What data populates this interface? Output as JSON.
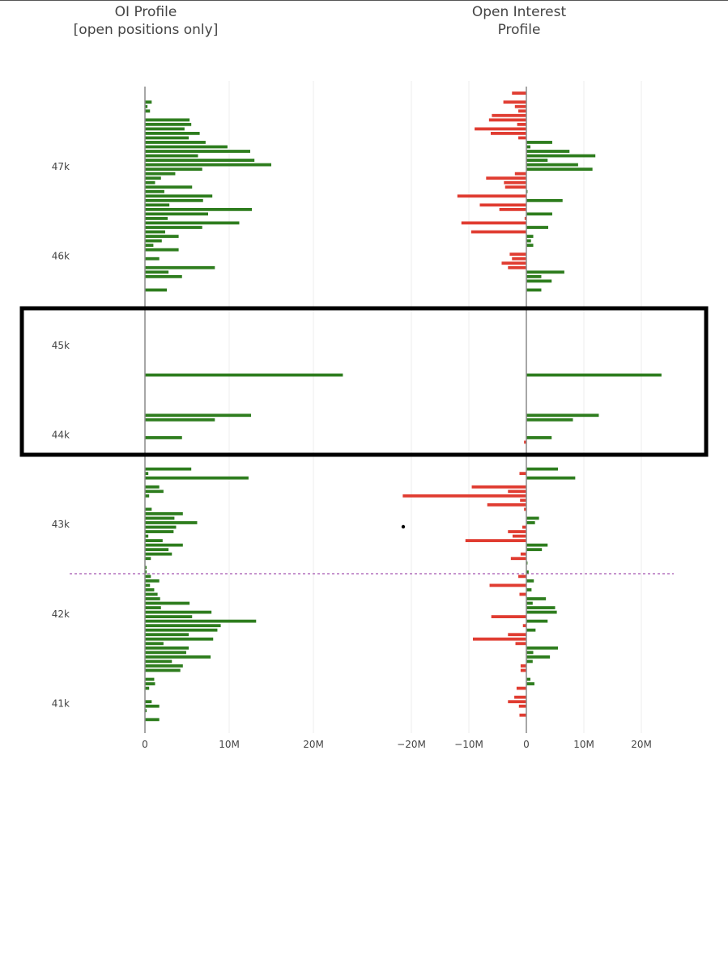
{
  "titles": {
    "left_line1": "OI Profile",
    "left_line2": "[open positions only]",
    "right_line1": "Open Interest",
    "right_line2": "Profile"
  },
  "colors": {
    "positive": "#2e7d1e",
    "negative": "#e03c31",
    "grid": "#ececec",
    "zero_axis": "#8a8a8a",
    "reference_line": "#a355b0",
    "highlight_box": "#000000",
    "tick_text": "#444444"
  },
  "chart_data": [
    {
      "type": "bar",
      "orientation": "horizontal",
      "title": "OI Profile [open positions only]",
      "ylim": [
        40700,
        47950
      ],
      "xlim": [
        0,
        26000000
      ],
      "y_ticks": [
        41000,
        42000,
        43000,
        44000,
        45000,
        46000,
        47000
      ],
      "y_tick_labels": [
        "41k",
        "42k",
        "43k",
        "44k",
        "45k",
        "46k",
        "47k"
      ],
      "x_ticks": [
        0,
        10000000,
        20000000
      ],
      "x_tick_labels": [
        "0",
        "10M",
        "20M"
      ],
      "grid": true,
      "series": [
        {
          "values": [
            [
              47720,
              800000
            ],
            [
              47670,
              300000
            ],
            [
              47620,
              600000
            ],
            [
              47520,
              5300000
            ],
            [
              47470,
              5500000
            ],
            [
              47420,
              4700000
            ],
            [
              47370,
              6500000
            ],
            [
              47320,
              5200000
            ],
            [
              47270,
              7200000
            ],
            [
              47220,
              9800000
            ],
            [
              47170,
              12500000
            ],
            [
              47120,
              6300000
            ],
            [
              47070,
              13000000
            ],
            [
              47020,
              15000000
            ],
            [
              46970,
              6800000
            ],
            [
              46920,
              3600000
            ],
            [
              46870,
              1900000
            ],
            [
              46820,
              1200000
            ],
            [
              46770,
              5600000
            ],
            [
              46720,
              2300000
            ],
            [
              46670,
              8000000
            ],
            [
              46620,
              6900000
            ],
            [
              46570,
              2900000
            ],
            [
              46520,
              12700000
            ],
            [
              46470,
              7500000
            ],
            [
              46420,
              2700000
            ],
            [
              46370,
              11200000
            ],
            [
              46320,
              6800000
            ],
            [
              46270,
              2400000
            ],
            [
              46220,
              4000000
            ],
            [
              46170,
              2000000
            ],
            [
              46120,
              1000000
            ],
            [
              46070,
              4000000
            ],
            [
              45970,
              1700000
            ],
            [
              45870,
              8300000
            ],
            [
              45820,
              2800000
            ],
            [
              45770,
              4400000
            ],
            [
              45620,
              2600000
            ],
            [
              44670,
              23500000
            ],
            [
              44220,
              12600000
            ],
            [
              44170,
              8300000
            ],
            [
              43970,
              4400000
            ],
            [
              43620,
              5500000
            ],
            [
              43570,
              400000
            ],
            [
              43520,
              12300000
            ],
            [
              43420,
              1700000
            ],
            [
              43370,
              2200000
            ],
            [
              43320,
              500000
            ],
            [
              43170,
              800000
            ],
            [
              43120,
              4500000
            ],
            [
              43070,
              3500000
            ],
            [
              43020,
              6200000
            ],
            [
              42970,
              3700000
            ],
            [
              42920,
              3400000
            ],
            [
              42870,
              400000
            ],
            [
              42820,
              2100000
            ],
            [
              42770,
              4500000
            ],
            [
              42720,
              2800000
            ],
            [
              42670,
              3200000
            ],
            [
              42620,
              700000
            ],
            [
              42520,
              200000
            ],
            [
              42470,
              200000
            ],
            [
              42420,
              700000
            ],
            [
              42370,
              1700000
            ],
            [
              42320,
              600000
            ],
            [
              42270,
              1100000
            ],
            [
              42220,
              1500000
            ],
            [
              42170,
              1800000
            ],
            [
              42120,
              5300000
            ],
            [
              42070,
              1900000
            ],
            [
              42020,
              7900000
            ],
            [
              41970,
              5600000
            ],
            [
              41920,
              13200000
            ],
            [
              41870,
              9000000
            ],
            [
              41820,
              8600000
            ],
            [
              41770,
              5200000
            ],
            [
              41720,
              8100000
            ],
            [
              41670,
              2200000
            ],
            [
              41620,
              5200000
            ],
            [
              41570,
              4900000
            ],
            [
              41520,
              7800000
            ],
            [
              41470,
              3200000
            ],
            [
              41420,
              4500000
            ],
            [
              41370,
              4200000
            ],
            [
              41270,
              1100000
            ],
            [
              41220,
              1200000
            ],
            [
              41170,
              500000
            ],
            [
              41020,
              800000
            ],
            [
              40970,
              1700000
            ],
            [
              40920,
              200000
            ],
            [
              40820,
              1700000
            ]
          ]
        }
      ]
    },
    {
      "type": "bar",
      "orientation": "horizontal",
      "title": "Open Interest Profile",
      "ylim": [
        40700,
        47950
      ],
      "xlim": [
        -26000000,
        26000000
      ],
      "x_ticks": [
        -20000000,
        -10000000,
        0,
        10000000,
        20000000
      ],
      "x_tick_labels": [
        "−20M",
        "−10M",
        "0",
        "10M",
        "20M"
      ],
      "grid": true,
      "reference_line_y": 42450,
      "series": [
        {
          "values": [
            [
              47820,
              -2500000
            ],
            [
              47720,
              -4000000
            ],
            [
              47670,
              -2000000
            ],
            [
              47620,
              -1400000
            ],
            [
              47570,
              -6000000
            ],
            [
              47520,
              -6500000
            ],
            [
              47470,
              -1600000
            ],
            [
              47420,
              -9000000
            ],
            [
              47370,
              -6200000
            ],
            [
              47320,
              -1400000
            ],
            [
              47270,
              4500000
            ],
            [
              47220,
              700000
            ],
            [
              47170,
              7500000
            ],
            [
              47120,
              12000000
            ],
            [
              47070,
              3700000
            ],
            [
              47020,
              9000000
            ],
            [
              46970,
              11500000
            ],
            [
              46920,
              -2000000
            ],
            [
              46870,
              -7000000
            ],
            [
              46820,
              -3900000
            ],
            [
              46770,
              -3700000
            ],
            [
              46720,
              200000
            ],
            [
              46670,
              -12000000
            ],
            [
              46620,
              6300000
            ],
            [
              46570,
              -8100000
            ],
            [
              46520,
              -4700000
            ],
            [
              46470,
              4500000
            ],
            [
              46420,
              -300000
            ],
            [
              46370,
              -11300000
            ],
            [
              46320,
              3800000
            ],
            [
              46270,
              -9600000
            ],
            [
              46220,
              1200000
            ],
            [
              46170,
              800000
            ],
            [
              46120,
              1200000
            ],
            [
              46020,
              -2900000
            ],
            [
              45970,
              -2500000
            ],
            [
              45920,
              -4300000
            ],
            [
              45870,
              -3200000
            ],
            [
              45820,
              6600000
            ],
            [
              45770,
              2600000
            ],
            [
              45720,
              4400000
            ],
            [
              45620,
              2600000
            ],
            [
              44670,
              23500000
            ],
            [
              44220,
              12600000
            ],
            [
              44170,
              8100000
            ],
            [
              43970,
              4400000
            ],
            [
              43920,
              -400000
            ],
            [
              43620,
              5500000
            ],
            [
              43570,
              -1200000
            ],
            [
              43520,
              8500000
            ],
            [
              43420,
              -9500000
            ],
            [
              43370,
              -3200000
            ],
            [
              43320,
              -21500000
            ],
            [
              43270,
              -1100000
            ],
            [
              43220,
              -6800000
            ],
            [
              43170,
              -400000
            ],
            [
              43070,
              2200000
            ],
            [
              43020,
              1500000
            ],
            [
              42970,
              -700000
            ],
            [
              42920,
              -3200000
            ],
            [
              42870,
              -2400000
            ],
            [
              42820,
              -10600000
            ],
            [
              42770,
              3700000
            ],
            [
              42720,
              2700000
            ],
            [
              42670,
              -1000000
            ],
            [
              42620,
              -2700000
            ],
            [
              42570,
              200000
            ],
            [
              42470,
              400000
            ],
            [
              42420,
              -1400000
            ],
            [
              42370,
              1300000
            ],
            [
              42320,
              -6400000
            ],
            [
              42270,
              900000
            ],
            [
              42220,
              -1200000
            ],
            [
              42170,
              3400000
            ],
            [
              42120,
              1100000
            ],
            [
              42070,
              5000000
            ],
            [
              42020,
              5300000
            ],
            [
              41970,
              -6100000
            ],
            [
              41920,
              3700000
            ],
            [
              41870,
              -600000
            ],
            [
              41820,
              1600000
            ],
            [
              41770,
              -3200000
            ],
            [
              41720,
              -9300000
            ],
            [
              41670,
              -1900000
            ],
            [
              41620,
              5500000
            ],
            [
              41570,
              1200000
            ],
            [
              41520,
              4100000
            ],
            [
              41470,
              1100000
            ],
            [
              41420,
              -1000000
            ],
            [
              41370,
              -1000000
            ],
            [
              41270,
              700000
            ],
            [
              41220,
              1400000
            ],
            [
              41170,
              -1700000
            ],
            [
              41070,
              -2100000
            ],
            [
              41020,
              -3200000
            ],
            [
              40970,
              -1300000
            ],
            [
              40870,
              -1200000
            ]
          ]
        }
      ]
    }
  ]
}
